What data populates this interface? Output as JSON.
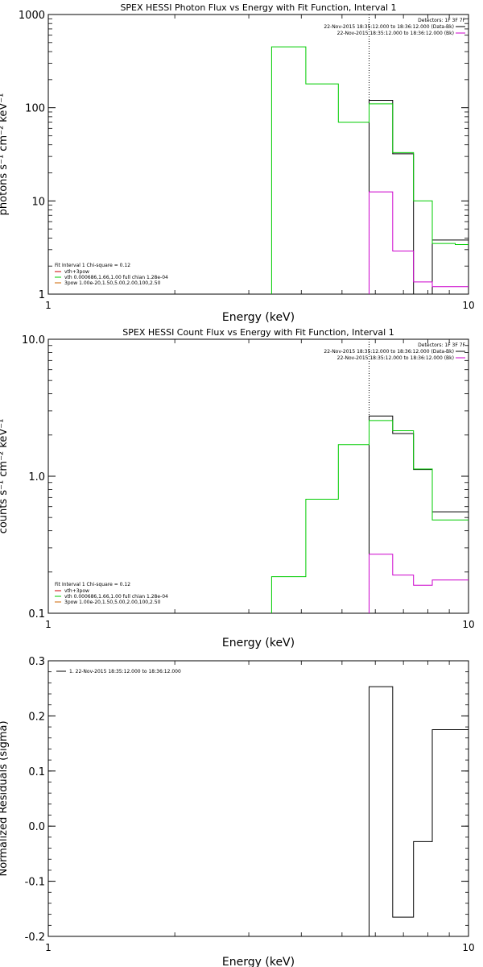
{
  "chart_data": [
    {
      "type": "line",
      "title": "SPEX HESSI Photon Flux vs Energy with Fit Function, Interval 1",
      "xlabel": "Energy (keV)",
      "ylabel": "photons s⁻¹ cm⁻² keV⁻¹",
      "xscale": "log",
      "yscale": "log",
      "xlim": [
        1,
        10
      ],
      "ylim": [
        1,
        1000
      ],
      "x_ticks": [
        {
          "v": 1,
          "label": "1"
        },
        {
          "v": 10,
          "label": "10"
        }
      ],
      "y_ticks": [
        {
          "v": 1,
          "label": "1"
        },
        {
          "v": 10,
          "label": "10"
        },
        {
          "v": 100,
          "label": "100"
        },
        {
          "v": 1000,
          "label": "1000"
        }
      ],
      "vline": 5.8,
      "legend_right": {
        "title": "Detectors: 1F 3F 7F",
        "entries": [
          {
            "label": "22-Nov-2015 18:35:12.000 to 18:36:12.000 (Data-Bk)",
            "color": "#000000"
          },
          {
            "label": "22-Nov-2015 18:35:12.000 to 18:36:12.000 (Bk)",
            "color": "#cc00cc"
          }
        ]
      },
      "legend_left": {
        "title": "Fit Interval 1   Chi-square = 0.12",
        "entries": [
          {
            "label": "vth+3pow",
            "color": "#cc0000"
          },
          {
            "label": "vth 0.000686,1.66,1.00  full chian 1.28e-04",
            "color": "#00cc00"
          },
          {
            "label": "3pow 1.00e-20,1.50,5.00,2.00,100,2.50",
            "color": "#cc6600"
          }
        ]
      },
      "series": [
        {
          "name": "Data-Bk",
          "color": "#000000",
          "edges": [
            5.8,
            6.6,
            7.4,
            8.2,
            9.3,
            10
          ],
          "values": [
            120,
            32,
            0.5,
            3.8,
            3.8
          ]
        },
        {
          "name": "Bk",
          "color": "#cc00cc",
          "edges": [
            5.8,
            6.6,
            7.4,
            8.2,
            9.3,
            10
          ],
          "values": [
            12.5,
            2.9,
            1.35,
            1.2,
            1.2
          ]
        },
        {
          "name": "vth+3pow",
          "color": "#00cc00",
          "edges": [
            3.4,
            4.1,
            4.9,
            5.8,
            6.6,
            7.4,
            8.2,
            9.3,
            10
          ],
          "values": [
            450,
            180,
            70,
            110,
            33,
            10,
            3.5,
            3.4
          ]
        }
      ]
    },
    {
      "type": "line",
      "title": "SPEX HESSI Count Flux vs Energy with Fit Function, Interval 1",
      "xlabel": "Energy (keV)",
      "ylabel": "counts s⁻¹ cm⁻² keV⁻¹",
      "xscale": "log",
      "yscale": "log",
      "xlim": [
        1,
        10
      ],
      "ylim": [
        0.1,
        10
      ],
      "x_ticks": [
        {
          "v": 1,
          "label": "1"
        },
        {
          "v": 10,
          "label": "10"
        }
      ],
      "y_ticks": [
        {
          "v": 0.1,
          "label": "0.1"
        },
        {
          "v": 1,
          "label": "1.0"
        },
        {
          "v": 10,
          "label": "10.0"
        }
      ],
      "vline": 5.8,
      "legend_right": {
        "title": "Detectors: 1F 3F 7F",
        "entries": [
          {
            "label": "22-Nov-2015 18:35:12.000 to 18:36:12.000 (Data-Bk)",
            "color": "#000000"
          },
          {
            "label": "22-Nov-2015 18:35:12.000 to 18:36:12.000 (Bk)",
            "color": "#cc00cc"
          }
        ]
      },
      "legend_left": {
        "title": "Fit Interval 1   Chi-square = 0.12",
        "entries": [
          {
            "label": "vth+3pow",
            "color": "#cc0000"
          },
          {
            "label": "vth 0.000686,1.66,1.00  full chian 1.28e-04",
            "color": "#00cc00"
          },
          {
            "label": "3pow 1.00e-20,1.50,5.00,2.00,100,2.50",
            "color": "#cc6600"
          }
        ]
      },
      "series": [
        {
          "name": "Data-Bk",
          "color": "#000000",
          "edges": [
            5.8,
            6.6,
            7.4,
            8.2,
            9.3,
            10
          ],
          "values": [
            2.75,
            2.05,
            1.12,
            0.55,
            0.55
          ]
        },
        {
          "name": "Bk",
          "color": "#cc00cc",
          "edges": [
            5.8,
            6.6,
            7.4,
            8.2,
            9.3,
            10
          ],
          "values": [
            0.27,
            0.19,
            0.16,
            0.175,
            0.175
          ]
        },
        {
          "name": "vth+3pow",
          "color": "#00cc00",
          "edges": [
            3.4,
            4.1,
            4.9,
            5.8,
            6.6,
            7.4,
            8.2,
            9.3,
            10
          ],
          "values": [
            0.185,
            0.68,
            1.7,
            2.55,
            2.15,
            1.13,
            0.48,
            0.48
          ]
        }
      ]
    },
    {
      "type": "line",
      "title": "",
      "xlabel": "Energy (keV)",
      "ylabel": "Normalized Residuals (sigma)",
      "xscale": "log",
      "yscale": "linear",
      "xlim": [
        1,
        10
      ],
      "ylim": [
        -0.2,
        0.3
      ],
      "x_ticks": [
        {
          "v": 1,
          "label": "1"
        },
        {
          "v": 10,
          "label": "10"
        }
      ],
      "y_ticks": [
        {
          "v": -0.2,
          "label": "-0.2"
        },
        {
          "v": -0.1,
          "label": "-0.1"
        },
        {
          "v": 0,
          "label": "0.0"
        },
        {
          "v": 0.1,
          "label": "0.1"
        },
        {
          "v": 0.2,
          "label": "0.2"
        },
        {
          "v": 0.3,
          "label": "0.3"
        }
      ],
      "legend_left_top": {
        "entries": [
          {
            "label": "1. 22-Nov-2015 18:35:12.000 to 18:36:12.000",
            "color": "#000000"
          }
        ]
      },
      "series": [
        {
          "name": "residuals",
          "color": "#000000",
          "edges": [
            5.8,
            6.6,
            7.4,
            8.2,
            9.3,
            10
          ],
          "values": [
            0.253,
            -0.165,
            -0.028,
            0.175,
            0.175
          ]
        }
      ]
    }
  ]
}
